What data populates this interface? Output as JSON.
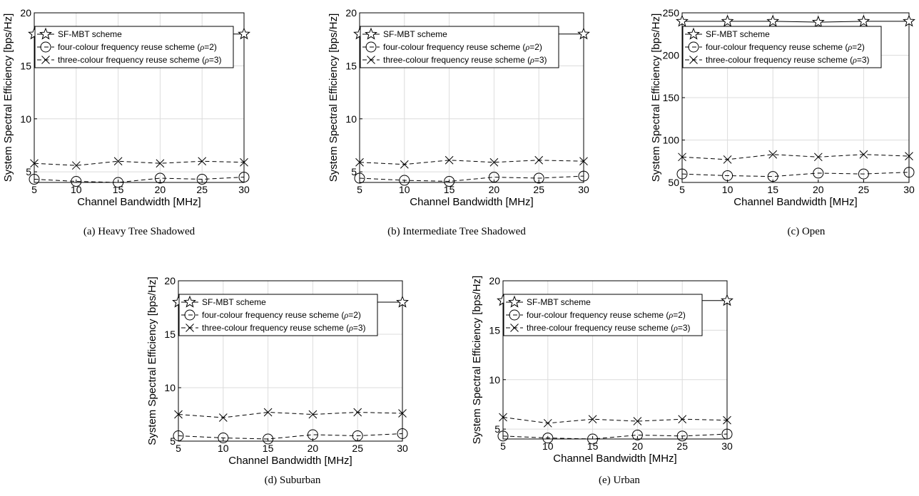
{
  "chart_data": [
    {
      "type": "line",
      "caption": "(a) Heavy Tree Shadowed",
      "xlabel": "Channel Bandwidth [MHz]",
      "ylabel": "System Spectral Efficiency [bps/Hz]",
      "x": [
        5,
        10,
        15,
        20,
        25,
        30
      ],
      "xticks": [
        "5",
        "10",
        "15",
        "20",
        "25",
        "30"
      ],
      "xlim": [
        5,
        30
      ],
      "ylim": [
        4,
        20
      ],
      "yticks": [
        "5",
        "10",
        "15",
        "20"
      ],
      "grid": true,
      "legend_position": "top-left",
      "series": [
        {
          "name": "SF-MBT scheme",
          "marker": "star",
          "dash": "solid",
          "values": [
            18.0,
            18.0,
            18.0,
            18.0,
            18.0,
            18.0
          ]
        },
        {
          "name": "four-colour frequency reuse scheme (ρ=2)",
          "name_prefix": "four-colour frequency reuse scheme (",
          "name_symbol": "ρ",
          "name_suffix": "=2)",
          "marker": "circle",
          "dash": "dashed",
          "values": [
            4.3,
            4.1,
            4.0,
            4.4,
            4.3,
            4.5
          ]
        },
        {
          "name": "three-colour frequency reuse scheme (ρ=3)",
          "name_prefix": "three-colour frequency reuse scheme (",
          "name_symbol": "ρ",
          "name_suffix": "=3)",
          "marker": "x",
          "dash": "dashed",
          "values": [
            5.8,
            5.6,
            6.0,
            5.8,
            6.0,
            5.9
          ]
        }
      ]
    },
    {
      "type": "line",
      "caption": "(b) Intermediate Tree Shadowed",
      "xlabel": "Channel Bandwidth [MHz]",
      "ylabel": "System Spectral Efficiency [bps/Hz]",
      "x": [
        5,
        10,
        15,
        20,
        25,
        30
      ],
      "xticks": [
        "5",
        "10",
        "15",
        "20",
        "25",
        "30"
      ],
      "xlim": [
        5,
        30
      ],
      "ylim": [
        4,
        20
      ],
      "yticks": [
        "5",
        "10",
        "15",
        "20"
      ],
      "grid": true,
      "legend_position": "top-left",
      "series": [
        {
          "name": "SF-MBT scheme",
          "marker": "star",
          "dash": "solid",
          "values": [
            18.0,
            18.0,
            18.0,
            18.0,
            18.0,
            18.0
          ]
        },
        {
          "name": "four-colour frequency reuse scheme (ρ=2)",
          "name_prefix": "four-colour frequency reuse scheme (",
          "name_symbol": "ρ",
          "name_suffix": "=2)",
          "marker": "circle",
          "dash": "dashed",
          "values": [
            4.4,
            4.2,
            4.1,
            4.5,
            4.4,
            4.6
          ]
        },
        {
          "name": "three-colour frequency reuse scheme (ρ=3)",
          "name_prefix": "three-colour frequency reuse scheme (",
          "name_symbol": "ρ",
          "name_suffix": "=3)",
          "marker": "x",
          "dash": "dashed",
          "values": [
            5.9,
            5.7,
            6.1,
            5.9,
            6.1,
            6.0
          ]
        }
      ]
    },
    {
      "type": "line",
      "caption": "(c) Open",
      "xlabel": "Channel Bandwidth [MHz]",
      "ylabel": "System Spectral Efficiency [bps/Hz]",
      "x": [
        5,
        10,
        15,
        20,
        25,
        30
      ],
      "xticks": [
        "5",
        "10",
        "15",
        "20",
        "25",
        "30"
      ],
      "xlim": [
        5,
        30
      ],
      "ylim": [
        50,
        250
      ],
      "yticks": [
        "50",
        "100",
        "150",
        "200",
        "250"
      ],
      "grid": true,
      "legend_position": "top-left",
      "series": [
        {
          "name": "SF-MBT scheme",
          "marker": "star",
          "dash": "solid",
          "values": [
            240,
            240,
            240,
            239,
            240,
            240
          ]
        },
        {
          "name": "four-colour frequency reuse scheme (ρ=2)",
          "name_prefix": "four-colour frequency reuse scheme (",
          "name_symbol": "ρ",
          "name_suffix": "=2)",
          "marker": "circle",
          "dash": "dashed",
          "values": [
            60,
            58,
            57,
            61,
            60,
            62
          ]
        },
        {
          "name": "three-colour frequency reuse scheme (ρ=3)",
          "name_prefix": "three-colour frequency reuse scheme (",
          "name_symbol": "ρ",
          "name_suffix": "=3)",
          "marker": "x",
          "dash": "dashed",
          "values": [
            80,
            77,
            83,
            80,
            83,
            81
          ]
        }
      ]
    },
    {
      "type": "line",
      "caption": "(d) Suburban",
      "xlabel": "Channel Bandwidth [MHz]",
      "ylabel": "System Spectral Efficiency [bps/Hz]",
      "x": [
        5,
        10,
        15,
        20,
        25,
        30
      ],
      "xticks": [
        "5",
        "10",
        "15",
        "20",
        "25",
        "30"
      ],
      "xlim": [
        5,
        30
      ],
      "ylim": [
        5,
        20
      ],
      "yticks": [
        "5",
        "10",
        "15",
        "20"
      ],
      "grid": true,
      "legend_position": "top-left",
      "series": [
        {
          "name": "SF-MBT scheme",
          "marker": "star",
          "dash": "solid",
          "values": [
            18.0,
            18.0,
            18.0,
            18.0,
            18.0,
            18.0
          ]
        },
        {
          "name": "four-colour frequency reuse scheme (ρ=2)",
          "name_prefix": "four-colour frequency reuse scheme (",
          "name_symbol": "ρ",
          "name_suffix": "=2)",
          "marker": "circle",
          "dash": "dashed",
          "values": [
            5.5,
            5.3,
            5.2,
            5.6,
            5.5,
            5.7
          ]
        },
        {
          "name": "three-colour frequency reuse scheme (ρ=3)",
          "name_prefix": "three-colour frequency reuse scheme (",
          "name_symbol": "ρ",
          "name_suffix": "=3)",
          "marker": "x",
          "dash": "dashed",
          "values": [
            7.5,
            7.2,
            7.7,
            7.5,
            7.7,
            7.6
          ]
        }
      ]
    },
    {
      "type": "line",
      "caption": "(e) Urban",
      "xlabel": "Channel Bandwidth [MHz]",
      "ylabel": "System Spectral Efficiency [bps/Hz]",
      "x": [
        5,
        10,
        15,
        20,
        25,
        30
      ],
      "xticks": [
        "5",
        "10",
        "15",
        "20",
        "25",
        "30"
      ],
      "xlim": [
        5,
        30
      ],
      "ylim": [
        4,
        20
      ],
      "yticks": [
        "5",
        "10",
        "15",
        "20"
      ],
      "grid": true,
      "legend_position": "top-left",
      "series": [
        {
          "name": "SF-MBT scheme",
          "marker": "star",
          "dash": "solid",
          "values": [
            18.0,
            18.0,
            18.0,
            18.0,
            18.0,
            18.0
          ]
        },
        {
          "name": "four-colour frequency reuse scheme (ρ=2)",
          "name_prefix": "four-colour frequency reuse scheme (",
          "name_symbol": "ρ",
          "name_suffix": "=2)",
          "marker": "circle",
          "dash": "dashed",
          "values": [
            4.3,
            4.1,
            4.0,
            4.4,
            4.3,
            4.5
          ]
        },
        {
          "name": "three-colour frequency reuse scheme (ρ=3)",
          "name_prefix": "three-colour frequency reuse scheme (",
          "name_symbol": "ρ",
          "name_suffix": "=3)",
          "marker": "x",
          "dash": "dashed",
          "values": [
            6.2,
            5.6,
            6.0,
            5.8,
            6.0,
            5.9
          ]
        }
      ]
    }
  ]
}
